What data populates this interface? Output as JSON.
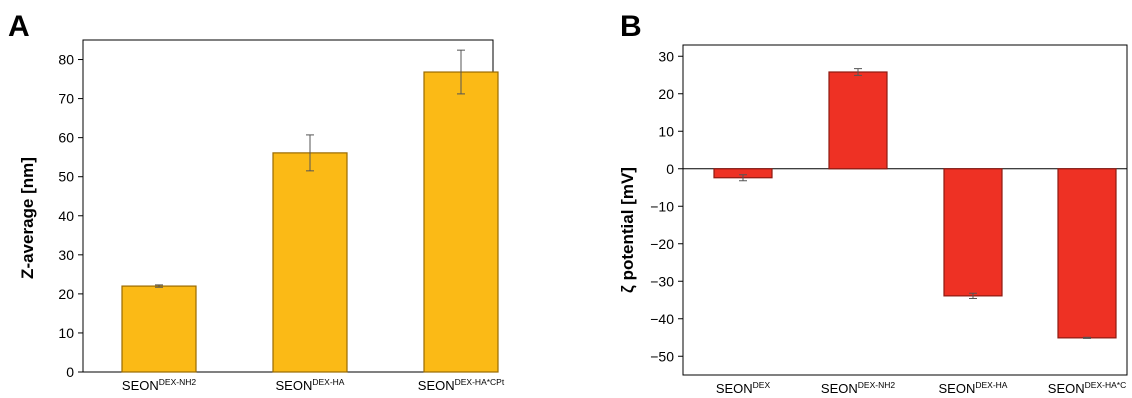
{
  "chart_data": [
    {
      "panel": "A",
      "type": "bar",
      "ylabel": "Z-average [nm]",
      "ylim": [
        0,
        85
      ],
      "yticks": [
        0,
        10,
        20,
        30,
        40,
        50,
        60,
        70,
        80
      ],
      "categories": [
        {
          "base": "SEON",
          "sup": "DEX-NH2"
        },
        {
          "base": "SEON",
          "sup": "DEX-HA"
        },
        {
          "base": "SEON",
          "sup": "DEX-HA*CPt"
        }
      ],
      "values": [
        22.0,
        56.1,
        76.8
      ],
      "errors": [
        0.3,
        4.6,
        5.6
      ],
      "bar_color": "#FBBA16",
      "bar_edge": "#9A6A00"
    },
    {
      "panel": "B",
      "type": "bar",
      "ylabel": "ζ potential [mV]",
      "ylim": [
        -55,
        33
      ],
      "yticks": [
        30,
        20,
        10,
        0,
        -10,
        -20,
        -30,
        -40,
        -50
      ],
      "categories": [
        {
          "base": "SEON",
          "sup": "DEX"
        },
        {
          "base": "SEON",
          "sup": "DEX-NH2"
        },
        {
          "base": "SEON",
          "sup": "DEX-HA"
        },
        {
          "base": "SEON",
          "sup": "DEX-HA*C"
        }
      ],
      "values": [
        -2.4,
        25.8,
        -33.9,
        -45.1
      ],
      "errors": [
        0.8,
        0.9,
        0.7,
        0.15
      ],
      "bar_color": "#EE3124",
      "bar_edge": "#8E1A12"
    }
  ]
}
